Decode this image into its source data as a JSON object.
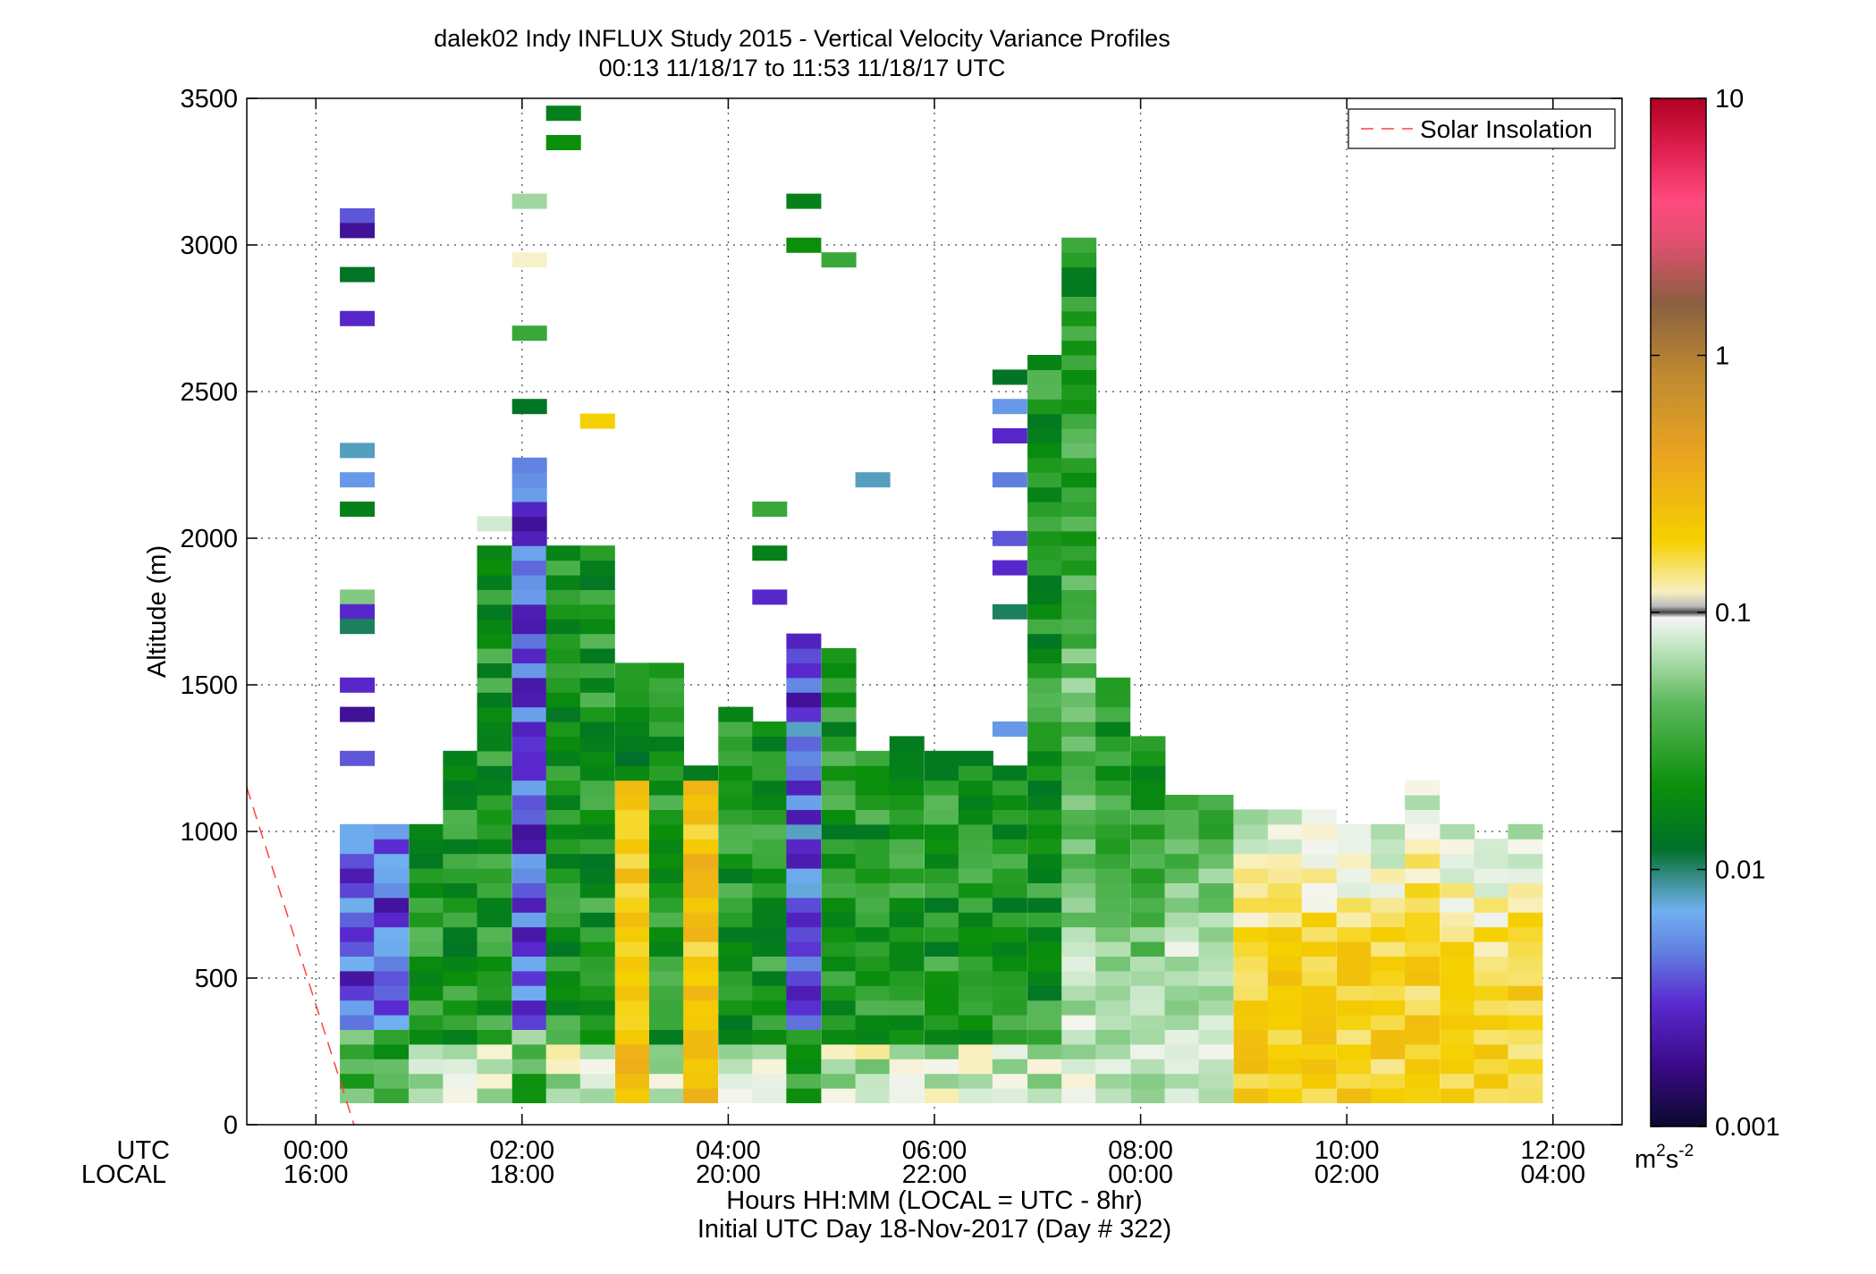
{
  "chart_data": {
    "type": "heatmap",
    "title": "dalek02 Indy INFLUX Study 2015 - Vertical Velocity Variance Profiles",
    "subtitle": "00:13 11/18/17 to 11:53 11/18/17  UTC",
    "xlabel": "Hours HH:MM  (LOCAL = UTC - 8hr)",
    "xlabel2": "Initial UTC Day 18-Nov-2017 (Day # 322)",
    "ylabel": "Altitude (m)",
    "x_row_labels": [
      "UTC",
      "LOCAL"
    ],
    "x_ticks_utc": [
      "00:00",
      "02:00",
      "04:00",
      "06:00",
      "08:00",
      "10:00",
      "12:00"
    ],
    "x_ticks_local": [
      "16:00",
      "18:00",
      "20:00",
      "22:00",
      "00:00",
      "02:00",
      "04:00"
    ],
    "x_tick_hours": [
      0,
      2,
      4,
      6,
      8,
      10,
      12
    ],
    "xlim": [
      -0.67,
      12.67
    ],
    "y_ticks": [
      0,
      500,
      1000,
      1500,
      2000,
      2500,
      3000,
      3500
    ],
    "ylim": [
      0,
      3500
    ],
    "grid": true,
    "legend": {
      "position": "top-right",
      "entries": [
        "Solar Insolation"
      ]
    },
    "colorbar": {
      "scale": "log",
      "range": [
        0.001,
        10
      ],
      "ticks": [
        "10",
        "1",
        "0.1",
        "0.01",
        "0.001"
      ],
      "tick_values": [
        10,
        1,
        0.1,
        0.01,
        0.001
      ],
      "unit_base": "m",
      "unit_sup1": "2",
      "unit_mid": "s",
      "unit_sup2": "-2"
    },
    "cell_height_m": 50,
    "profile_interval_min": 20,
    "profiles": [
      {
        "t": 0.4,
        "low": 100,
        "top": 1000
      },
      {
        "t": 0.73,
        "low": 100,
        "top": 1000
      },
      {
        "t": 1.07,
        "low": 100,
        "top": 1000
      },
      {
        "t": 1.4,
        "low": 100,
        "top": 1250
      },
      {
        "t": 1.73,
        "low": 100,
        "top": 1950
      },
      {
        "t": 2.07,
        "low": 100,
        "top": 2250
      },
      {
        "t": 2.4,
        "low": 100,
        "top": 1950
      },
      {
        "t": 2.73,
        "low": 100,
        "top": 1950
      },
      {
        "t": 3.07,
        "low": 100,
        "top": 1550
      },
      {
        "t": 3.4,
        "low": 100,
        "top": 1550
      },
      {
        "t": 3.73,
        "low": 100,
        "top": 1200
      },
      {
        "t": 4.07,
        "low": 100,
        "top": 1400
      },
      {
        "t": 4.4,
        "low": 100,
        "top": 1350
      },
      {
        "t": 4.73,
        "low": 100,
        "top": 1650
      },
      {
        "t": 5.07,
        "low": 100,
        "top": 1600
      },
      {
        "t": 5.4,
        "low": 100,
        "top": 1250
      },
      {
        "t": 5.73,
        "low": 100,
        "top": 1300
      },
      {
        "t": 6.07,
        "low": 100,
        "top": 1250
      },
      {
        "t": 6.4,
        "low": 100,
        "top": 1250
      },
      {
        "t": 6.73,
        "low": 100,
        "top": 1200
      },
      {
        "t": 7.07,
        "low": 100,
        "top": 2600
      },
      {
        "t": 7.4,
        "low": 100,
        "top": 3000
      },
      {
        "t": 7.73,
        "low": 100,
        "top": 1500
      },
      {
        "t": 8.07,
        "low": 100,
        "top": 1300
      },
      {
        "t": 8.4,
        "low": 100,
        "top": 1100
      },
      {
        "t": 8.73,
        "low": 100,
        "top": 1100
      },
      {
        "t": 9.07,
        "low": 100,
        "top": 1050
      },
      {
        "t": 9.4,
        "low": 100,
        "top": 1050
      },
      {
        "t": 9.73,
        "low": 100,
        "top": 1050
      },
      {
        "t": 10.07,
        "low": 100,
        "top": 1000
      },
      {
        "t": 10.4,
        "low": 100,
        "top": 1000
      },
      {
        "t": 10.73,
        "low": 100,
        "top": 1150
      },
      {
        "t": 11.07,
        "low": 100,
        "top": 1000
      },
      {
        "t": 11.4,
        "low": 100,
        "top": 950
      },
      {
        "t": 11.73,
        "low": 100,
        "top": 1000
      }
    ],
    "isolated_cells": [
      {
        "t": 0.4,
        "z": 3100,
        "v": 0.004
      },
      {
        "t": 0.4,
        "z": 3050,
        "v": 0.002
      },
      {
        "t": 0.4,
        "z": 2900,
        "v": 0.012
      },
      {
        "t": 0.4,
        "z": 2750,
        "v": 0.003
      },
      {
        "t": 0.4,
        "z": 2300,
        "v": 0.008
      },
      {
        "t": 0.4,
        "z": 2200,
        "v": 0.006
      },
      {
        "t": 0.4,
        "z": 2100,
        "v": 0.015
      },
      {
        "t": 0.4,
        "z": 1800,
        "v": 0.05
      },
      {
        "t": 0.4,
        "z": 1750,
        "v": 0.003
      },
      {
        "t": 0.4,
        "z": 1700,
        "v": 0.01
      },
      {
        "t": 0.4,
        "z": 1500,
        "v": 0.003
      },
      {
        "t": 0.4,
        "z": 1400,
        "v": 0.002
      },
      {
        "t": 0.4,
        "z": 1250,
        "v": 0.004
      },
      {
        "t": 1.73,
        "z": 2050,
        "v": 0.08
      },
      {
        "t": 2.07,
        "z": 3150,
        "v": 0.06
      },
      {
        "t": 2.07,
        "z": 2950,
        "v": 0.12
      },
      {
        "t": 2.07,
        "z": 2700,
        "v": 0.03
      },
      {
        "t": 2.07,
        "z": 2450,
        "v": 0.012
      },
      {
        "t": 2.4,
        "z": 3450,
        "v": 0.015
      },
      {
        "t": 2.4,
        "z": 3350,
        "v": 0.02
      },
      {
        "t": 2.73,
        "z": 2400,
        "v": 0.2
      },
      {
        "t": 4.4,
        "z": 2100,
        "v": 0.03
      },
      {
        "t": 4.4,
        "z": 1950,
        "v": 0.015
      },
      {
        "t": 4.4,
        "z": 1800,
        "v": 0.003
      },
      {
        "t": 4.73,
        "z": 3150,
        "v": 0.015
      },
      {
        "t": 4.73,
        "z": 3000,
        "v": 0.02
      },
      {
        "t": 5.07,
        "z": 2950,
        "v": 0.03
      },
      {
        "t": 5.4,
        "z": 2200,
        "v": 0.008
      },
      {
        "t": 6.73,
        "z": 2550,
        "v": 0.012
      },
      {
        "t": 6.73,
        "z": 2450,
        "v": 0.006
      },
      {
        "t": 6.73,
        "z": 2350,
        "v": 0.003
      },
      {
        "t": 6.73,
        "z": 2200,
        "v": 0.005
      },
      {
        "t": 6.73,
        "z": 2000,
        "v": 0.004
      },
      {
        "t": 6.73,
        "z": 1900,
        "v": 0.003
      },
      {
        "t": 6.73,
        "z": 1750,
        "v": 0.01
      },
      {
        "t": 6.73,
        "z": 1350,
        "v": 0.006
      }
    ]
  },
  "overlay": {
    "name": "Solar Insolation",
    "color": "#ff4040",
    "points": [
      {
        "t": -0.67,
        "z": 1150
      },
      {
        "t": 0.37,
        "z": 0
      }
    ]
  }
}
